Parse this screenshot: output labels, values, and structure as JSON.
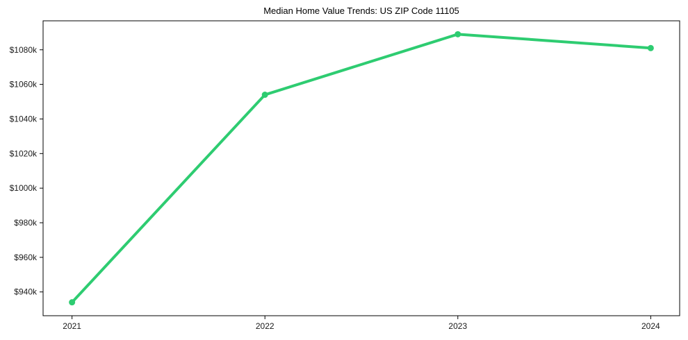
{
  "title": "Median Home Value Trends: US ZIP Code 11105",
  "chart_data": {
    "type": "line",
    "title": "Median Home Value Trends: US ZIP Code 11105",
    "xlabel": "",
    "ylabel": "",
    "x": [
      "2021",
      "2022",
      "2023",
      "2024"
    ],
    "series": [
      {
        "name": "Median Home Value",
        "values": [
          934000,
          1054000,
          1089000,
          1081000
        ]
      }
    ],
    "xtick_labels": [
      "2021",
      "2022",
      "2023",
      "2024"
    ],
    "yticks": [
      940000,
      960000,
      980000,
      1000000,
      1020000,
      1040000,
      1060000,
      1080000
    ],
    "ytick_labels": [
      "$940k",
      "$960k",
      "$980k",
      "$1000k",
      "$1020k",
      "$1040k",
      "$1060k",
      "$1080k"
    ],
    "ylim": [
      926250,
      1096750
    ],
    "grid": false,
    "legend": "none",
    "line_color": "#2ecc71",
    "marker": "circle",
    "marker_radius": 4.5,
    "line_width": 4,
    "axis_color": "#000000",
    "background": "#ffffff"
  }
}
